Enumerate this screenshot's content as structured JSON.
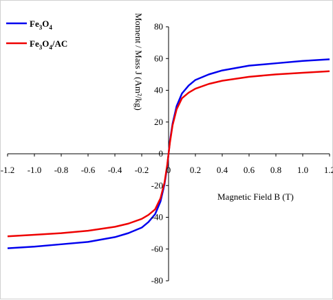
{
  "chart_data": {
    "type": "line",
    "xlabel": "Magnetic Field B (T)",
    "ylabel": "Moment / Mass  J (Am²/kg)",
    "xlim": [
      -1.2,
      1.2
    ],
    "ylim": [
      -80,
      80
    ],
    "x_ticks": [
      "-1.2",
      "-1.0",
      "-0.8",
      "-0.6",
      "-0.4",
      "-0.2",
      "0",
      "0.2",
      "0.4",
      "0.6",
      "0.8",
      "1.0",
      "1.2"
    ],
    "y_ticks": [
      "80",
      "60",
      "40",
      "20",
      "0",
      "-20",
      "-40",
      "-60",
      "-80"
    ],
    "grid": false,
    "legend_position": "top-left",
    "series": [
      {
        "name": "Fe3O4",
        "legend_main": "Fe",
        "legend_sub1": "3",
        "legend_mid": "O",
        "legend_sub2": "4",
        "legend_tail": "",
        "color": "#0000ee",
        "x": [
          -1.2,
          -1.0,
          -0.8,
          -0.6,
          -0.4,
          -0.3,
          -0.2,
          -0.15,
          -0.1,
          -0.06,
          -0.03,
          -0.01,
          0,
          0.01,
          0.03,
          0.06,
          0.1,
          0.15,
          0.2,
          0.3,
          0.4,
          0.6,
          0.8,
          1.0,
          1.2
        ],
        "y": [
          -59.5,
          -58.5,
          -57,
          -55.5,
          -52.5,
          -50,
          -46.5,
          -43,
          -38,
          -30,
          -19,
          -8,
          0,
          8,
          19,
          30,
          38,
          43,
          46.5,
          50,
          52.5,
          55.5,
          57,
          58.5,
          59.5
        ]
      },
      {
        "name": "Fe3O4/AC",
        "legend_main": "Fe",
        "legend_sub1": "3",
        "legend_mid": "O",
        "legend_sub2": "4",
        "legend_tail": "/AC",
        "color": "#ee0000",
        "x": [
          -1.2,
          -1.0,
          -0.8,
          -0.6,
          -0.4,
          -0.3,
          -0.2,
          -0.15,
          -0.1,
          -0.06,
          -0.03,
          -0.01,
          0,
          0.01,
          0.03,
          0.06,
          0.1,
          0.15,
          0.2,
          0.3,
          0.4,
          0.6,
          0.8,
          1.0,
          1.2
        ],
        "y": [
          -52,
          -51,
          -50,
          -48.5,
          -46,
          -44,
          -41,
          -38.5,
          -35,
          -28,
          -18,
          -7,
          0,
          7,
          18,
          28,
          35,
          38.5,
          41,
          44,
          46,
          48.5,
          50,
          51,
          52
        ]
      }
    ]
  }
}
